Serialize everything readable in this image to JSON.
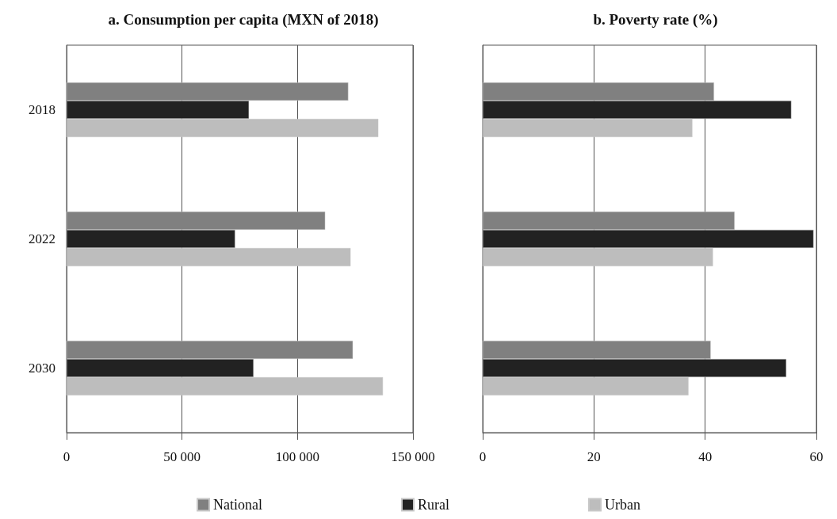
{
  "chart_data": [
    {
      "type": "bar",
      "orientation": "horizontal",
      "title": "a. Consumption per capita (MXN of 2018)",
      "categories": [
        "2018",
        "2022",
        "2030"
      ],
      "series": [
        {
          "name": "National",
          "color": "#808080",
          "values": [
            122000,
            112000,
            124000
          ]
        },
        {
          "name": "Rural",
          "color": "#222222",
          "values": [
            79000,
            73000,
            81000
          ]
        },
        {
          "name": "Urban",
          "color": "#bdbdbd",
          "values": [
            135000,
            123000,
            137000
          ]
        }
      ],
      "xlim": [
        0,
        150000
      ],
      "xticks": [
        0,
        {
          "value": 50000,
          "label": "50 000"
        },
        {
          "value": 100000,
          "label": "100 000"
        },
        {
          "value": 150000,
          "label": "150 000"
        }
      ],
      "grid": "x",
      "legend": "bottom"
    },
    {
      "type": "bar",
      "orientation": "horizontal",
      "title": "b. Poverty rate (%)",
      "categories": [
        "2018",
        "2022",
        "2030"
      ],
      "series": [
        {
          "color": "#808080",
          "values": [
            41.6,
            45.3,
            41.0
          ]
        },
        {
          "color": "#222222",
          "values": [
            55.5,
            59.5,
            54.6
          ]
        },
        {
          "color": "#bdbdbd",
          "values": [
            37.7,
            41.4,
            37.0
          ]
        }
      ],
      "xlim": [
        0,
        60
      ],
      "xticks": [
        0,
        20,
        40,
        60
      ],
      "grid": "x",
      "tick_labels": "x"
    }
  ]
}
